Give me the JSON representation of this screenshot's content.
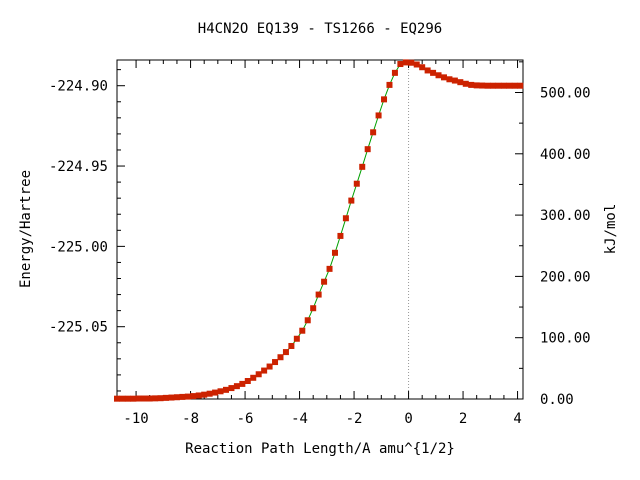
{
  "chart_data": {
    "type": "line",
    "title": "H4CN2O   EQ139 - TS1266 - EQ296",
    "xlabel": "Reaction Path Length/A amu^{1/2}",
    "ylabel": "Energy/Hartree",
    "y2label": "kJ/mol",
    "xlim": [
      -10.7,
      4.2
    ],
    "ylim": [
      -225.095,
      -224.884
    ],
    "y2lim": [
      0.0,
      553.0
    ],
    "x_ticks": [
      "-10",
      "-8",
      "-6",
      "-4",
      "-2",
      "0",
      "2",
      "4"
    ],
    "x_tick_values": [
      -10,
      -8,
      -6,
      -4,
      -2,
      0,
      2,
      4
    ],
    "y_ticks": [
      "-224.90",
      "-224.95",
      "-225.00",
      "-225.05"
    ],
    "y_tick_values": [
      -224.9,
      -224.95,
      -225.0,
      -225.05
    ],
    "y2_ticks": [
      "0.00",
      "100.00",
      "200.00",
      "300.00",
      "400.00",
      "500.00"
    ],
    "y2_tick_values": [
      0,
      100,
      200,
      300,
      400,
      500
    ],
    "ts_marker_x": 0.0,
    "grid": false,
    "series": [
      {
        "line_color": "#00a000",
        "marker_color": "#cc2200",
        "x": [
          -10.7,
          -10.5,
          -10.3,
          -10.1,
          -9.9,
          -9.7,
          -9.5,
          -9.3,
          -9.1,
          -8.9,
          -8.7,
          -8.5,
          -8.3,
          -8.1,
          -7.9,
          -7.7,
          -7.5,
          -7.3,
          -7.1,
          -6.9,
          -6.7,
          -6.5,
          -6.3,
          -6.1,
          -5.9,
          -5.7,
          -5.5,
          -5.3,
          -5.1,
          -4.9,
          -4.7,
          -4.5,
          -4.3,
          -4.1,
          -3.9,
          -3.7,
          -3.5,
          -3.3,
          -3.1,
          -2.9,
          -2.7,
          -2.5,
          -2.3,
          -2.1,
          -1.9,
          -1.7,
          -1.5,
          -1.3,
          -1.1,
          -0.9,
          -0.7,
          -0.5,
          -0.3,
          -0.1,
          0.1,
          0.3,
          0.5,
          0.7,
          0.9,
          1.1,
          1.3,
          1.5,
          1.7,
          1.9,
          2.1,
          2.3,
          2.5,
          2.7,
          2.9,
          3.1,
          3.3,
          3.5,
          3.7,
          3.9,
          4.1
        ],
        "y": [
          -225.0948,
          -225.0948,
          -225.0948,
          -225.0948,
          -225.0947,
          -225.0947,
          -225.0947,
          -225.0946,
          -225.0945,
          -225.0943,
          -225.0941,
          -225.0939,
          -225.0937,
          -225.0935,
          -225.0932,
          -225.0928,
          -225.0923,
          -225.0917,
          -225.091,
          -225.0902,
          -225.0893,
          -225.0882,
          -225.087,
          -225.0856,
          -225.0838,
          -225.0818,
          -225.0796,
          -225.0773,
          -225.0748,
          -225.072,
          -225.069,
          -225.0658,
          -225.062,
          -225.0575,
          -225.0525,
          -225.046,
          -225.0385,
          -225.03,
          -225.022,
          -225.014,
          -225.004,
          -224.9935,
          -224.9825,
          -224.9715,
          -224.961,
          -224.9505,
          -224.9395,
          -224.929,
          -224.9185,
          -224.9085,
          -224.8995,
          -224.892,
          -224.8865,
          -224.8855,
          -224.8857,
          -224.8868,
          -224.8885,
          -224.8905,
          -224.892,
          -224.8935,
          -224.8948,
          -224.896,
          -224.8968,
          -224.8978,
          -224.8988,
          -224.8995,
          -224.8998,
          -224.8999,
          -224.9,
          -224.9,
          -224.9,
          -224.9,
          -224.9,
          -224.9,
          -224.9
        ]
      }
    ]
  }
}
